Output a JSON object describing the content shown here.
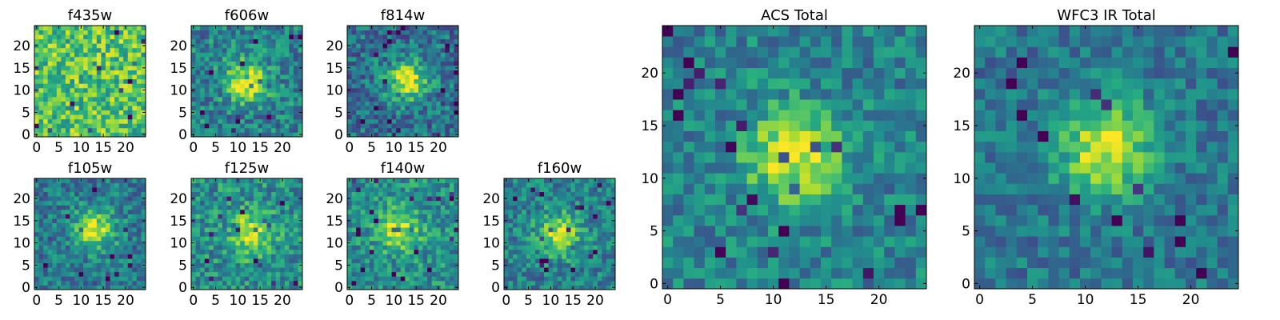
{
  "chart_data": {
    "type": "heatmap",
    "colormap": "viridis",
    "pixel_grid": [
      25,
      25
    ],
    "panels": [
      {
        "title": "f435w",
        "xlim": [
          0,
          24
        ],
        "ylim": [
          0,
          24
        ],
        "xticks": [
          0,
          5,
          10,
          15,
          20
        ],
        "yticks": [
          0,
          5,
          10,
          15,
          20
        ],
        "source_peak": [
          12,
          12
        ],
        "source_strength": 0.0,
        "noise": 0.25,
        "background": 0.72
      },
      {
        "title": "f606w",
        "xlim": [
          0,
          24
        ],
        "ylim": [
          0,
          24
        ],
        "xticks": [
          0,
          5,
          10,
          15,
          20
        ],
        "yticks": [
          0,
          5,
          10,
          15,
          20
        ],
        "source_peak": [
          12,
          12
        ],
        "source_strength": 0.5,
        "noise": 0.22,
        "background": 0.45
      },
      {
        "title": "f814w",
        "xlim": [
          0,
          24
        ],
        "ylim": [
          0,
          24
        ],
        "xticks": [
          0,
          5,
          10,
          15,
          20
        ],
        "yticks": [
          0,
          5,
          10,
          15,
          20
        ],
        "source_peak": [
          13,
          12
        ],
        "source_strength": 0.55,
        "noise": 0.22,
        "background": 0.38
      },
      {
        "title": "f105w",
        "xlim": [
          0,
          24
        ],
        "ylim": [
          0,
          24
        ],
        "xticks": [
          0,
          5,
          10,
          15,
          20
        ],
        "yticks": [
          0,
          5,
          10,
          15,
          20
        ],
        "source_peak": [
          13,
          13
        ],
        "source_strength": 0.5,
        "noise": 0.2,
        "background": 0.42
      },
      {
        "title": "f125w",
        "xlim": [
          0,
          24
        ],
        "ylim": [
          0,
          24
        ],
        "xticks": [
          0,
          5,
          10,
          15,
          20
        ],
        "yticks": [
          0,
          5,
          10,
          15,
          20
        ],
        "source_peak": [
          13,
          12
        ],
        "source_strength": 0.45,
        "noise": 0.22,
        "background": 0.5
      },
      {
        "title": "f140w",
        "xlim": [
          0,
          24
        ],
        "ylim": [
          0,
          24
        ],
        "xticks": [
          0,
          5,
          10,
          15,
          20
        ],
        "yticks": [
          0,
          5,
          10,
          15,
          20
        ],
        "source_peak": [
          11,
          13
        ],
        "source_strength": 0.45,
        "noise": 0.2,
        "background": 0.5
      },
      {
        "title": "f160w",
        "xlim": [
          0,
          24
        ],
        "ylim": [
          0,
          24
        ],
        "xticks": [
          0,
          5,
          10,
          15,
          20
        ],
        "yticks": [
          0,
          5,
          10,
          15,
          20
        ],
        "source_peak": [
          12,
          12
        ],
        "source_strength": 0.45,
        "noise": 0.2,
        "background": 0.45
      },
      {
        "title": "ACS Total",
        "xlim": [
          0,
          24
        ],
        "ylim": [
          0,
          24
        ],
        "xticks": [
          0,
          5,
          10,
          15,
          20
        ],
        "yticks": [
          0,
          5,
          10,
          15,
          20
        ],
        "source_peak": [
          12,
          12
        ],
        "source_strength": 0.5,
        "noise": 0.18,
        "background": 0.45
      },
      {
        "title": "WFC3 IR Total",
        "xlim": [
          0,
          24
        ],
        "ylim": [
          0,
          24
        ],
        "xticks": [
          0,
          5,
          10,
          15,
          20
        ],
        "yticks": [
          0,
          5,
          10,
          15,
          20
        ],
        "source_peak": [
          12,
          13
        ],
        "source_strength": 0.55,
        "noise": 0.16,
        "background": 0.4
      }
    ]
  }
}
